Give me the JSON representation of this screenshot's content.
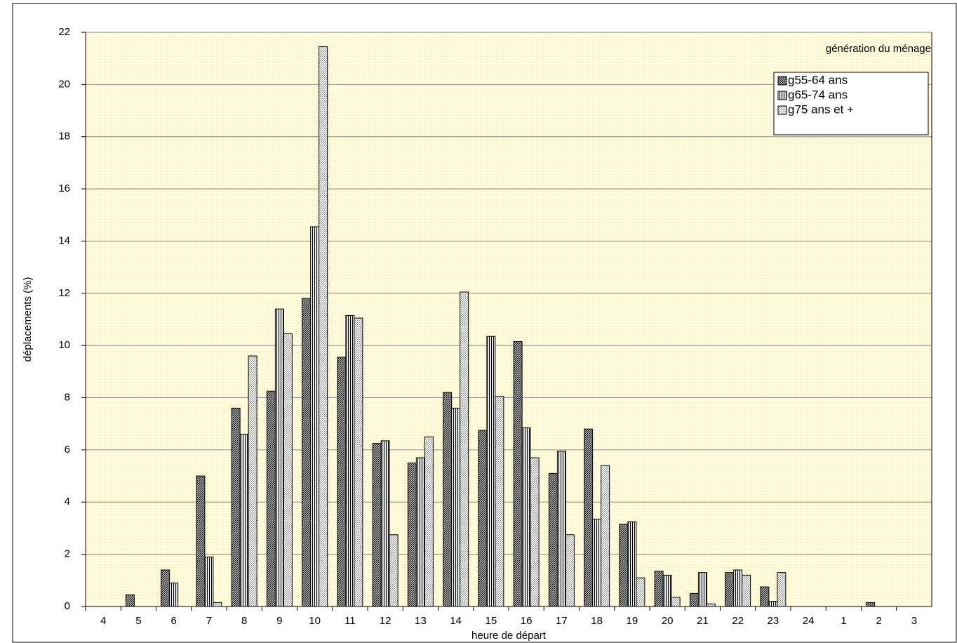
{
  "chart_data": {
    "type": "bar",
    "y_label": "déplacements (%)",
    "x_label": "heure de départ",
    "legend_title": "génération du ménage",
    "legend_position": "upper right",
    "plot_background": "#fffbdc",
    "grid": true,
    "categories": [
      "4",
      "5",
      "6",
      "7",
      "8",
      "9",
      "10",
      "11",
      "12",
      "13",
      "14",
      "15",
      "16",
      "17",
      "18",
      "19",
      "20",
      "21",
      "22",
      "23",
      "24",
      "1",
      "2",
      "3"
    ],
    "series": [
      {
        "name": "g55-64 ans",
        "color": "#000000",
        "pattern": "dense-diagonal",
        "values": [
          0,
          0.45,
          1.4,
          5.0,
          7.6,
          8.25,
          11.8,
          9.55,
          6.25,
          5.5,
          8.2,
          6.75,
          10.15,
          5.1,
          6.8,
          3.15,
          1.35,
          0.5,
          1.3,
          0.75,
          0,
          0,
          0.15,
          0
        ]
      },
      {
        "name": "g65-74 ans",
        "color": "#000000",
        "pattern": "vertical",
        "values": [
          0,
          0,
          0.9,
          1.9,
          6.6,
          11.4,
          14.55,
          11.15,
          6.35,
          5.7,
          7.6,
          10.35,
          6.85,
          5.95,
          3.35,
          3.25,
          1.2,
          1.3,
          1.4,
          0.2,
          0,
          0,
          0,
          0
        ]
      },
      {
        "name": "g75 ans et +",
        "color": "#000000",
        "pattern": "diagonal",
        "values": [
          0,
          0,
          0,
          0.15,
          9.6,
          10.45,
          21.45,
          11.05,
          2.75,
          6.5,
          12.05,
          8.05,
          5.7,
          2.75,
          5.4,
          1.1,
          0.35,
          0.1,
          1.2,
          1.3,
          0,
          0,
          0,
          0
        ]
      }
    ],
    "ylim": [
      0,
      22
    ],
    "yticks": [
      0,
      2,
      4,
      6,
      8,
      10,
      12,
      14,
      16,
      18,
      20,
      22
    ]
  }
}
